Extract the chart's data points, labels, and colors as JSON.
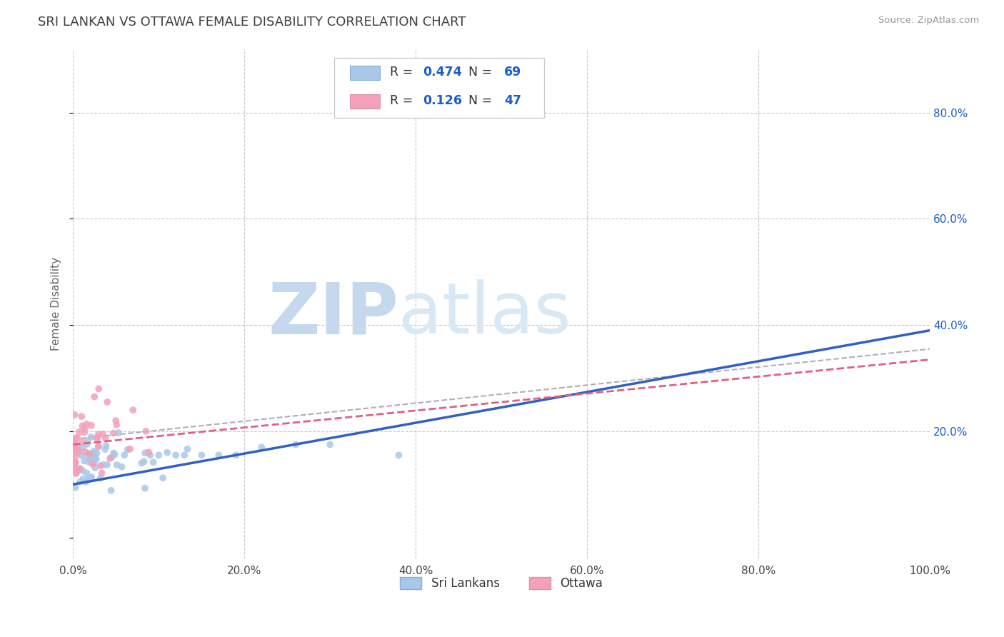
{
  "title": "SRI LANKAN VS OTTAWA FEMALE DISABILITY CORRELATION CHART",
  "source": "Source: ZipAtlas.com",
  "ylabel": "Female Disability",
  "xlim": [
    0.0,
    1.0
  ],
  "ylim": [
    -0.04,
    0.92
  ],
  "xticks": [
    0.0,
    0.2,
    0.4,
    0.6,
    0.8,
    1.0
  ],
  "xtick_labels": [
    "0.0%",
    "20.0%",
    "40.0%",
    "60.0%",
    "80.0%",
    "100.0%"
  ],
  "yticks": [
    0.2,
    0.4,
    0.6,
    0.8
  ],
  "ytick_labels": [
    "20.0%",
    "40.0%",
    "60.0%",
    "80.0%"
  ],
  "sri_lankan_R": 0.474,
  "sri_lankan_N": 69,
  "ottawa_R": 0.126,
  "ottawa_N": 47,
  "sri_lankan_color": "#a8c8e8",
  "ottawa_color": "#f4a0b8",
  "sri_lankan_line_color": "#3060c0",
  "ottawa_line_color": "#e06080",
  "trend_line_color": "#b0b0b0",
  "background_color": "#ffffff",
  "grid_color": "#c8c8c8",
  "title_color": "#404040",
  "label_color": "#1a5ecc",
  "watermark_zip": "ZIP",
  "watermark_atlas": "atlas",
  "legend_labels": [
    "Sri Lankans",
    "Ottawa"
  ],
  "sl_line_y0": 0.1,
  "sl_line_y1": 0.39,
  "ot_line_y0": 0.175,
  "ot_line_y1": 0.335,
  "gray_line_y0": 0.185,
  "gray_line_y1": 0.355
}
